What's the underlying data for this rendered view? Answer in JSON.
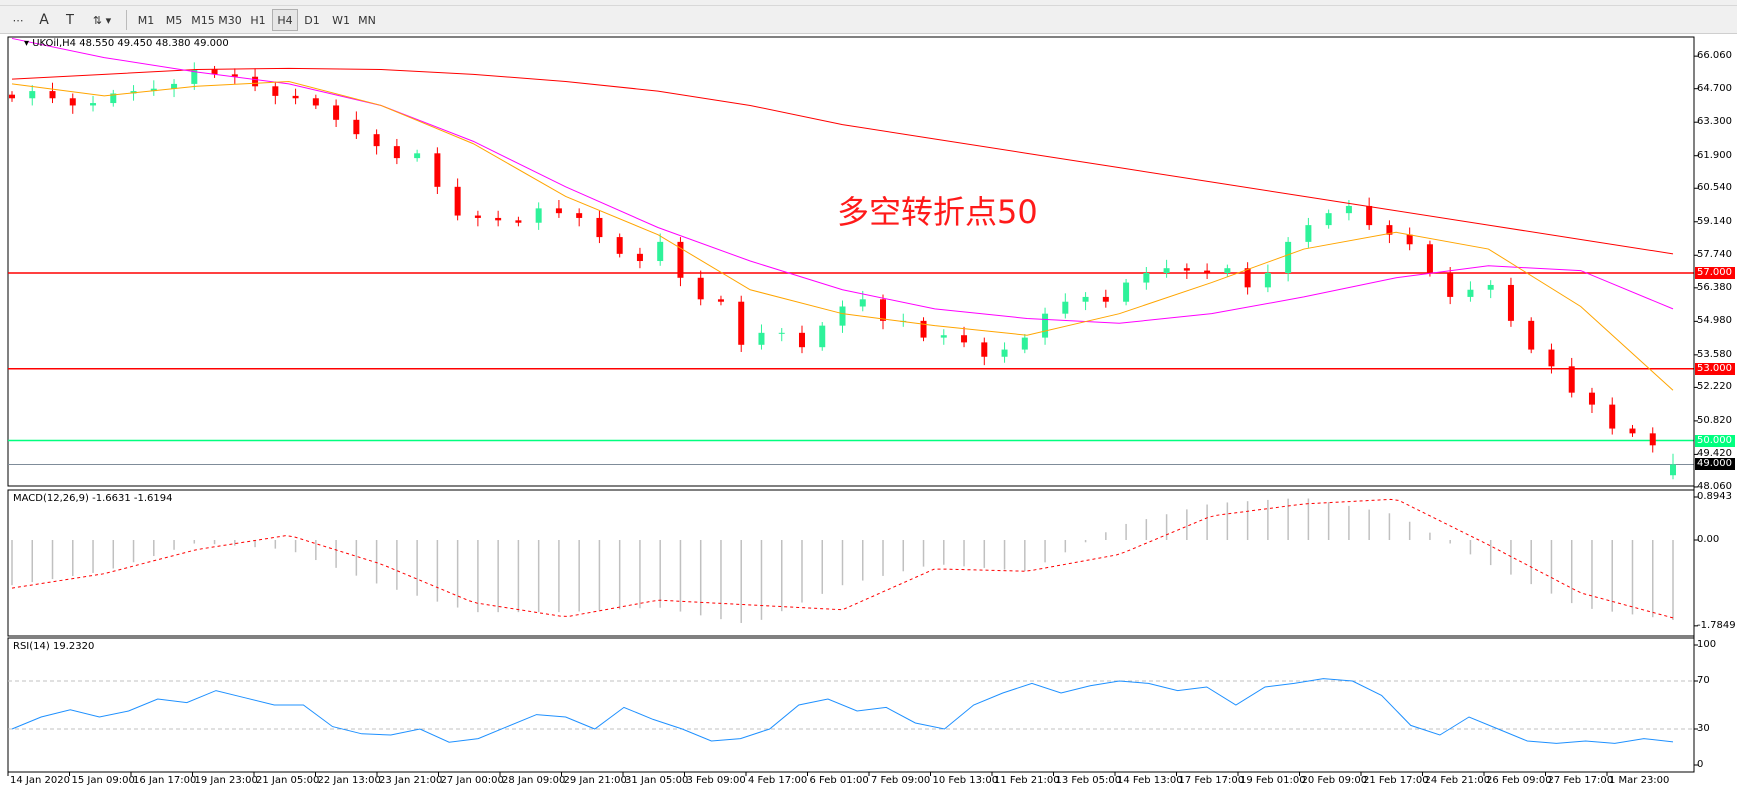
{
  "toolbar": {
    "tools": [
      "period-separators-icon",
      "text-icon",
      "text-label-icon",
      "arrows-icon"
    ],
    "timeframes": [
      "M1",
      "M5",
      "M15",
      "M30",
      "H1",
      "H4",
      "D1",
      "W1",
      "MN"
    ],
    "selected": "H4"
  },
  "header": {
    "symbol": "UKOil,H4",
    "ohlc": "48.550 49.450 48.380 49.000"
  },
  "annotation": "多空转折点50",
  "colors": {
    "bull": "#2ef29a",
    "bear": "#ff0000",
    "ma_fast": "#ffa500",
    "ma_mid": "#ff00ff",
    "ma_slow": "#ff0000",
    "level_red": "#ff0000",
    "level_green": "#00ff7f",
    "bid": "#000000",
    "rsi": "#1e90ff",
    "macd_hist": "#c0c0c0",
    "macd_signal": "#ff0000"
  },
  "chart_data": [
    {
      "type": "candlestick",
      "title": "UKOil,H4",
      "ylim": [
        48.1,
        66.86
      ],
      "y_ticks": [
        "66.060",
        "64.700",
        "63.300",
        "61.900",
        "60.540",
        "59.140",
        "57.740",
        "56.380",
        "54.980",
        "53.580",
        "52.220",
        "50.820",
        "49.420",
        "48.060"
      ],
      "x_ticks": [
        "14 Jan 2020",
        "15 Jan 09:00",
        "16 Jan 17:00",
        "19 Jan 23:00",
        "21 Jan 05:00",
        "22 Jan 13:00",
        "23 Jan 21:00",
        "27 Jan 00:00",
        "28 Jan 09:00",
        "29 Jan 21:00",
        "31 Jan 05:00",
        "3 Feb 09:00",
        "4 Feb 17:00",
        "6 Feb 01:00",
        "7 Feb 09:00",
        "10 Feb 13:00",
        "11 Feb 21:00",
        "13 Feb 05:00",
        "14 Feb 13:00",
        "17 Feb 17:00",
        "19 Feb 01:00",
        "20 Feb 09:00",
        "21 Feb 17:00",
        "24 Feb 21:00",
        "26 Feb 09:00",
        "27 Feb 17:00",
        "1 Mar 23:00"
      ],
      "close": [
        64.3,
        64.6,
        64.3,
        64.0,
        64.1,
        64.5,
        64.6,
        64.7,
        64.9,
        65.5,
        65.3,
        65.2,
        64.8,
        64.4,
        64.3,
        64.0,
        63.4,
        62.8,
        62.3,
        61.8,
        62.0,
        60.6,
        59.4,
        59.3,
        59.2,
        59.1,
        59.7,
        59.5,
        59.3,
        58.5,
        57.8,
        57.5,
        58.3,
        56.8,
        55.9,
        55.8,
        54.0,
        54.5,
        54.5,
        53.9,
        54.8,
        55.6,
        55.9,
        55.0,
        55.0,
        54.3,
        54.4,
        54.1,
        53.5,
        53.8,
        54.3,
        55.3,
        55.8,
        56.0,
        55.8,
        56.6,
        57.0,
        57.2,
        57.1,
        57.0,
        57.2,
        56.4,
        57.0,
        58.3,
        59.0,
        59.5,
        59.8,
        59.0,
        58.6,
        58.2,
        57.0,
        56.0,
        56.3,
        56.5,
        55.0,
        53.8,
        53.1,
        52.0,
        51.5,
        50.5,
        50.3,
        49.8,
        49.0
      ],
      "last_bar": {
        "open": 48.55,
        "high": 49.45,
        "low": 48.38,
        "close": 49.0
      },
      "moving_averages": [
        {
          "color": "#ff0000",
          "values": [
            65.1,
            65.3,
            65.5,
            65.55,
            65.5,
            65.3,
            65.0,
            64.6,
            64.0,
            63.2,
            62.6,
            62.0,
            61.4,
            60.8,
            60.2,
            59.6,
            59.0,
            58.4,
            57.8
          ]
        },
        {
          "color": "#ff00ff",
          "values": [
            66.8,
            66.0,
            65.4,
            64.9,
            64.0,
            62.5,
            60.6,
            58.9,
            57.5,
            56.3,
            55.5,
            55.1,
            54.9,
            55.3,
            56.0,
            56.8,
            57.3,
            57.1,
            55.5
          ]
        },
        {
          "color": "#ffa500",
          "values": [
            64.9,
            64.4,
            64.8,
            65.0,
            64.0,
            62.4,
            60.2,
            58.6,
            56.3,
            55.3,
            54.8,
            54.4,
            55.3,
            56.6,
            58.0,
            58.7,
            58.0,
            55.6,
            52.1
          ]
        }
      ],
      "levels": [
        {
          "value": 57.0,
          "label": "57.000",
          "color": "#ff0000"
        },
        {
          "value": 53.0,
          "label": "53.000",
          "color": "#ff0000"
        },
        {
          "value": 50.0,
          "label": "50.000",
          "color": "#00ff7f"
        },
        {
          "value": 49.0,
          "label": "49.000",
          "color": "#000000",
          "kind": "bid"
        }
      ]
    },
    {
      "type": "bar",
      "title": "MACD(12,26,9) -1.6631 -1.6194",
      "ylim": [
        -1.7849,
        0.8943
      ],
      "y_ticks": [
        "0.8943",
        "0.00",
        "-1.7849"
      ],
      "macd": [
        -0.94,
        -0.65,
        -0.06,
        -0.2,
        -0.94,
        -1.5,
        -1.5,
        -1.4,
        -1.76,
        -0.94,
        -0.5,
        -0.65,
        0.3,
        0.76,
        0.88,
        0.53,
        -0.5,
        -1.4,
        -1.6631
      ],
      "signal": [
        -1.0,
        -0.7,
        -0.2,
        0.1,
        -0.5,
        -1.3,
        -1.6,
        -1.25,
        -1.35,
        -1.45,
        -0.6,
        -0.65,
        -0.3,
        0.5,
        0.75,
        0.85,
        -0.1,
        -1.1,
        -1.6194
      ]
    },
    {
      "type": "line",
      "title": "RSI(14) 19.2320",
      "ylim": [
        0,
        100
      ],
      "y_ticks": [
        "100",
        "70",
        "30",
        "0"
      ],
      "levels": [
        70,
        30
      ],
      "values": [
        30,
        40,
        46,
        40,
        45,
        55,
        52,
        62,
        56,
        50,
        50,
        32,
        26,
        25,
        30,
        19,
        22,
        32,
        42,
        40,
        30,
        48,
        38,
        30,
        20,
        22,
        30,
        50,
        55,
        45,
        48,
        35,
        30,
        50,
        60,
        68,
        60,
        66,
        70,
        68,
        62,
        65,
        50,
        65,
        68,
        72,
        70,
        58,
        33,
        25,
        40,
        30,
        20,
        18,
        20,
        18,
        22,
        19.232
      ]
    }
  ]
}
